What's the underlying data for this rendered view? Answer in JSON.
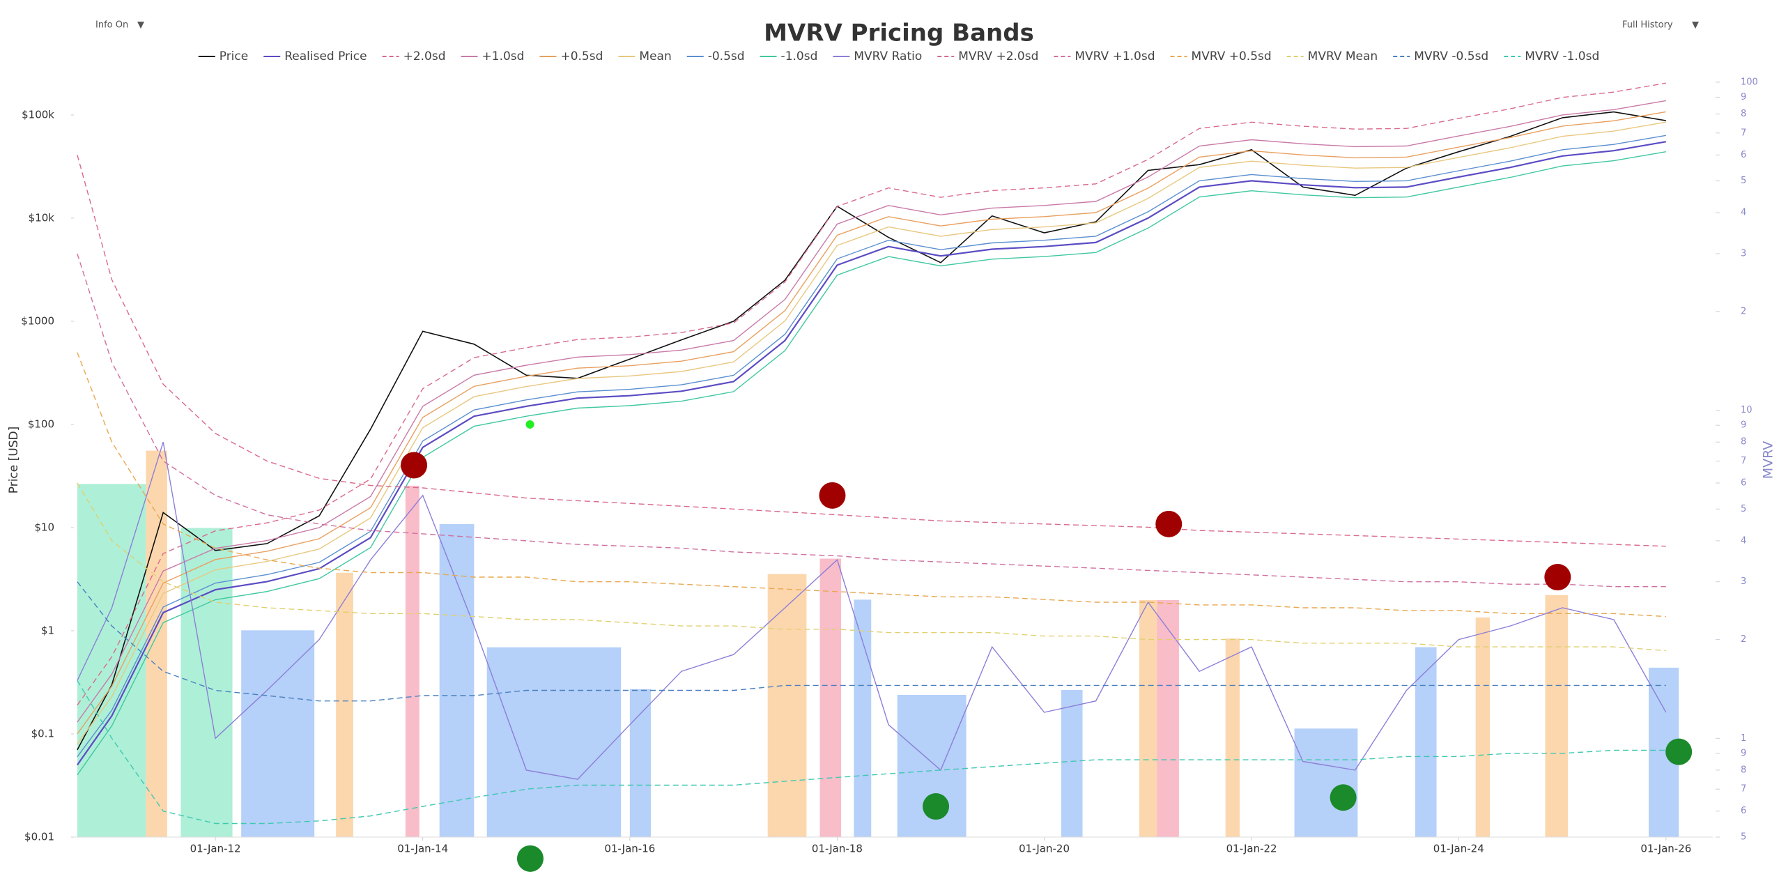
{
  "controls": [
    {
      "label": "Info On",
      "arrow": "▼"
    },
    {
      "label": "Full History",
      "arrow": "▼"
    }
  ],
  "chart_data": {
    "type": "line",
    "title": "MVRV Pricing Bands",
    "y_label": "Price [USD]",
    "y2_label": "MVRV",
    "log_y": true,
    "log_y2": true,
    "grid": false,
    "legend": "top",
    "x": [
      "2010-09-01",
      "2011-01-01",
      "2011-07-01",
      "2012-01-01",
      "2012-07-01",
      "2013-01-01",
      "2013-07-01",
      "2014-01-01",
      "2014-07-01",
      "2015-01-01",
      "2015-07-01",
      "2016-01-01",
      "2016-07-01",
      "2017-01-01",
      "2017-07-01",
      "2018-01-01",
      "2018-07-01",
      "2019-01-01",
      "2019-07-01",
      "2020-01-01",
      "2020-07-01",
      "2021-01-01",
      "2021-07-01",
      "2022-01-01",
      "2022-07-01",
      "2023-01-01",
      "2023-07-01",
      "2024-01-01",
      "2024-07-01",
      "2025-01-01",
      "2025-07-01",
      "2026-01-01"
    ],
    "xlim": [
      "2010-08-20",
      "2026-06-15"
    ],
    "xticks": [
      {
        "value": "2012-01-01",
        "label": "01-Jan-12"
      },
      {
        "value": "2014-01-01",
        "label": "01-Jan-14"
      },
      {
        "value": "2016-01-01",
        "label": "01-Jan-16"
      },
      {
        "value": "2018-01-01",
        "label": "01-Jan-18"
      },
      {
        "value": "2020-01-01",
        "label": "01-Jan-20"
      },
      {
        "value": "2022-01-01",
        "label": "01-Jan-22"
      },
      {
        "value": "2024-01-01",
        "label": "01-Jan-24"
      },
      {
        "value": "2026-01-01",
        "label": "01-Jan-26"
      }
    ],
    "ylim": [
      0.01,
      250000
    ],
    "yticks": [
      {
        "value": 0.01,
        "label": "$0.01"
      },
      {
        "value": 0.1,
        "label": "$0.1"
      },
      {
        "value": 1,
        "label": "$1"
      },
      {
        "value": 10,
        "label": "$10"
      },
      {
        "value": 100,
        "label": "$100"
      },
      {
        "value": 1000,
        "label": "$1000"
      },
      {
        "value": 10000,
        "label": "$10k"
      },
      {
        "value": 100000,
        "label": "$100k"
      }
    ],
    "y2lim": [
      0.5,
      106
    ],
    "y2ticks": [
      100,
      {
        "value": 90,
        "label": "9"
      },
      {
        "value": 80,
        "label": "8"
      },
      {
        "value": 70,
        "label": "7"
      },
      {
        "value": 60,
        "label": "6"
      },
      {
        "value": 50,
        "label": "5"
      },
      {
        "value": 40,
        "label": "4"
      },
      {
        "value": 30,
        "label": "3"
      },
      {
        "value": 20,
        "label": "2"
      },
      10,
      {
        "value": 9,
        "label": "9"
      },
      {
        "value": 8,
        "label": "8"
      },
      {
        "value": 7,
        "label": "7"
      },
      {
        "value": 6,
        "label": "6"
      },
      {
        "value": 5,
        "label": "5"
      },
      {
        "value": 4,
        "label": "4"
      },
      {
        "value": 3,
        "label": "3"
      },
      {
        "value": 2,
        "label": "2"
      },
      1,
      {
        "value": 0.9,
        "label": "9"
      },
      {
        "value": 0.8,
        "label": "8"
      },
      {
        "value": 0.7,
        "label": "7"
      },
      {
        "value": 0.6,
        "label": "6"
      },
      {
        "value": 0.5,
        "label": "5"
      }
    ],
    "series": [
      {
        "name": "Price",
        "color": "#111111",
        "width": 1.6,
        "values": [
          0.07,
          0.3,
          14,
          6,
          7,
          13,
          90,
          800,
          600,
          300,
          280,
          430,
          660,
          1000,
          2500,
          13000,
          6500,
          3700,
          10500,
          7200,
          9200,
          29000,
          33000,
          46000,
          20000,
          16600,
          30500,
          44000,
          62000,
          94000,
          107000,
          88000
        ]
      },
      {
        "name": "Realised Price",
        "color": "#5b4cc4",
        "width": 2.2,
        "values": [
          0.05,
          0.15,
          1.5,
          2.5,
          3,
          4,
          8,
          60,
          120,
          150,
          180,
          190,
          210,
          260,
          650,
          3500,
          5300,
          4300,
          5000,
          5300,
          5800,
          10000,
          20000,
          23000,
          21000,
          19700,
          20000,
          25000,
          31000,
          40000,
          45000,
          55000
        ]
      },
      {
        "name": "+2.0sd",
        "color": "#d96a8a",
        "dashed": true,
        "values": [
          0.19,
          0.56,
          5.6,
          9.3,
          11.1,
          14.8,
          29.6,
          222,
          444,
          555,
          666,
          703,
          777,
          962,
          2405,
          12950,
          19610,
          15910,
          18500,
          19610,
          21460,
          37000,
          74000,
          85100,
          77700,
          72890,
          74000,
          92500,
          114700,
          148000,
          166500,
          203500
        ]
      },
      {
        "name": "+1.0sd",
        "color": "#c97aa8",
        "values": [
          0.13,
          0.38,
          3.8,
          6.3,
          7.5,
          10,
          20,
          150,
          300,
          375,
          450,
          475,
          525,
          650,
          1625,
          8750,
          13250,
          10750,
          12500,
          13250,
          14500,
          25000,
          50000,
          57500,
          52500,
          49250,
          50000,
          62500,
          77500,
          100000,
          112500,
          137500
        ]
      },
      {
        "name": "+0.5sd",
        "color": "#e8a060",
        "values": [
          0.1,
          0.29,
          2.9,
          4.9,
          5.9,
          7.8,
          15.6,
          117,
          234,
          293,
          351,
          371,
          410,
          507,
          1268,
          6825,
          10335,
          8385,
          9750,
          10335,
          11310,
          19500,
          39000,
          44850,
          40950,
          38415,
          39000,
          48750,
          60450,
          78000,
          87750,
          107250
        ]
      },
      {
        "name": "Mean",
        "color": "#e8c880",
        "values": [
          0.08,
          0.23,
          2.3,
          3.9,
          4.7,
          6.2,
          12.4,
          93,
          186,
          233,
          279,
          295,
          326,
          403,
          1008,
          5425,
          8215,
          6665,
          7750,
          8215,
          8990,
          15500,
          31000,
          35650,
          32550,
          30535,
          31000,
          38750,
          48050,
          62000,
          69750,
          85250
        ]
      },
      {
        "name": "-0.5sd",
        "color": "#5a8fd0",
        "values": [
          0.06,
          0.17,
          1.7,
          2.9,
          3.5,
          4.6,
          9.2,
          69,
          138,
          173,
          207,
          219,
          242,
          299,
          748,
          4025,
          6095,
          4945,
          5750,
          6095,
          6670,
          11500,
          23000,
          26450,
          24150,
          22655,
          23000,
          28750,
          35650,
          46000,
          51750,
          63250
        ]
      },
      {
        "name": "-1.0sd",
        "color": "#40c8a0",
        "values": [
          0.04,
          0.12,
          1.2,
          2,
          2.4,
          3.2,
          6.4,
          48,
          96,
          120,
          144,
          152,
          168,
          208,
          520,
          2800,
          4240,
          3440,
          4000,
          4240,
          4640,
          8000,
          16000,
          18400,
          16800,
          15760,
          16000,
          20000,
          24800,
          32000,
          36000,
          44000
        ]
      },
      {
        "name": "MVRV Ratio",
        "color": "#8c7fd8",
        "axis": "y2",
        "values": [
          1.5,
          2.5,
          8,
          1.0,
          1.4,
          2.0,
          3.5,
          5.5,
          2.2,
          0.8,
          0.75,
          1.1,
          1.6,
          1.8,
          2.5,
          3.5,
          1.1,
          0.8,
          1.9,
          1.2,
          1.3,
          2.6,
          1.6,
          1.9,
          0.85,
          0.8,
          1.4,
          2.0,
          2.2,
          2.5,
          2.3,
          1.2
        ]
      },
      {
        "name": "MVRV +2.0sd",
        "color": "#d96a8a",
        "axis": "y2",
        "dashed": true,
        "values": [
          60,
          25,
          12,
          8.5,
          7,
          6.2,
          5.9,
          5.8,
          5.6,
          5.4,
          5.3,
          5.2,
          5.1,
          5,
          4.9,
          4.8,
          4.7,
          4.6,
          4.55,
          4.5,
          4.45,
          4.4,
          4.3,
          4.25,
          4.2,
          4.15,
          4.1,
          4.05,
          4,
          3.95,
          3.9,
          3.85
        ]
      },
      {
        "name": "MVRV +1.0sd",
        "color": "#d070a0",
        "axis": "y2",
        "dashed": true,
        "values": [
          30,
          14,
          7,
          5.5,
          4.8,
          4.5,
          4.3,
          4.2,
          4.1,
          4,
          3.9,
          3.85,
          3.8,
          3.7,
          3.65,
          3.6,
          3.5,
          3.45,
          3.4,
          3.35,
          3.3,
          3.25,
          3.2,
          3.15,
          3.1,
          3.05,
          3.0,
          3.0,
          2.95,
          2.95,
          2.9,
          2.9
        ]
      },
      {
        "name": "MVRV +0.5sd",
        "color": "#e8a850",
        "axis": "y2",
        "dashed": true,
        "values": [
          15,
          8,
          4.5,
          3.8,
          3.5,
          3.3,
          3.2,
          3.2,
          3.1,
          3.1,
          3.0,
          3.0,
          2.95,
          2.9,
          2.85,
          2.8,
          2.75,
          2.7,
          2.7,
          2.65,
          2.6,
          2.6,
          2.55,
          2.55,
          2.5,
          2.5,
          2.45,
          2.45,
          2.4,
          2.4,
          2.4,
          2.35
        ]
      },
      {
        "name": "MVRV Mean",
        "color": "#e0d070",
        "axis": "y2",
        "dashed": true,
        "values": [
          6,
          4,
          3,
          2.6,
          2.5,
          2.45,
          2.4,
          2.4,
          2.35,
          2.3,
          2.3,
          2.25,
          2.2,
          2.2,
          2.15,
          2.15,
          2.1,
          2.1,
          2.1,
          2.05,
          2.05,
          2.0,
          2.0,
          2.0,
          1.95,
          1.95,
          1.95,
          1.9,
          1.9,
          1.9,
          1.9,
          1.85
        ]
      },
      {
        "name": "MVRV -0.5sd",
        "color": "#4a80c0",
        "axis": "y2",
        "dashed": true,
        "values": [
          3,
          2.2,
          1.6,
          1.4,
          1.35,
          1.3,
          1.3,
          1.35,
          1.35,
          1.4,
          1.4,
          1.4,
          1.4,
          1.4,
          1.45,
          1.45,
          1.45,
          1.45,
          1.45,
          1.45,
          1.45,
          1.45,
          1.45,
          1.45,
          1.45,
          1.45,
          1.45,
          1.45,
          1.45,
          1.45,
          1.45,
          1.45
        ]
      },
      {
        "name": "MVRV -1.0sd",
        "color": "#40c8b0",
        "axis": "y2",
        "dashed": true,
        "values": [
          1.5,
          1,
          0.6,
          0.55,
          0.55,
          0.56,
          0.58,
          0.62,
          0.66,
          0.7,
          0.72,
          0.72,
          0.72,
          0.72,
          0.74,
          0.76,
          0.78,
          0.8,
          0.82,
          0.84,
          0.86,
          0.86,
          0.86,
          0.86,
          0.86,
          0.86,
          0.88,
          0.88,
          0.9,
          0.9,
          0.92,
          0.92
        ]
      }
    ],
    "zones": [
      {
        "start": "2010-09-01",
        "end": "2011-05-01",
        "color": "#a0ecd0"
      },
      {
        "start": "2011-05-01",
        "end": "2011-07-15",
        "color": "#fcd0a0"
      },
      {
        "start": "2011-09-01",
        "end": "2012-03-01",
        "color": "#a0ecd0"
      },
      {
        "start": "2012-04-01",
        "end": "2012-12-15",
        "color": "#a8c8f8"
      },
      {
        "start": "2013-03-01",
        "end": "2013-05-01",
        "color": "#fcd0a0"
      },
      {
        "start": "2013-11-01",
        "end": "2013-12-20",
        "color": "#f8b0c0"
      },
      {
        "start": "2014-03-01",
        "end": "2014-07-01",
        "color": "#a8c8f8"
      },
      {
        "start": "2014-08-15",
        "end": "2015-12-01",
        "color": "#a8c8f8"
      },
      {
        "start": "2016-01-01",
        "end": "2016-03-15",
        "color": "#a8c8f8"
      },
      {
        "start": "2017-05-01",
        "end": "2017-09-15",
        "color": "#fcd0a0"
      },
      {
        "start": "2017-11-01",
        "end": "2018-01-15",
        "color": "#f8b0c0"
      },
      {
        "start": "2018-03-01",
        "end": "2018-05-01",
        "color": "#a8c8f8"
      },
      {
        "start": "2018-08-01",
        "end": "2019-04-01",
        "color": "#a8c8f8"
      },
      {
        "start": "2020-03-01",
        "end": "2020-05-15",
        "color": "#a8c8f8"
      },
      {
        "start": "2020-12-01",
        "end": "2021-02-01",
        "color": "#fcd0a0"
      },
      {
        "start": "2021-02-01",
        "end": "2021-04-20",
        "color": "#f8b0c0"
      },
      {
        "start": "2021-10-01",
        "end": "2021-11-20",
        "color": "#fcd0a0"
      },
      {
        "start": "2022-06-01",
        "end": "2023-01-10",
        "color": "#a8c8f8"
      },
      {
        "start": "2023-08-01",
        "end": "2023-10-15",
        "color": "#a8c8f8"
      },
      {
        "start": "2024-03-01",
        "end": "2024-04-20",
        "color": "#fcd0a0"
      },
      {
        "start": "2024-11-01",
        "end": "2025-01-20",
        "color": "#fcd0a0"
      },
      {
        "start": "2025-11-01",
        "end": "2026-02-15",
        "color": "#a8c8f8"
      }
    ],
    "signals": [
      {
        "x": "2013-12-01",
        "value": 6.8,
        "color": "#a00000"
      },
      {
        "x": "2017-12-15",
        "value": 5.5,
        "color": "#a00000"
      },
      {
        "x": "2021-03-15",
        "value": 4.5,
        "color": "#a00000"
      },
      {
        "x": "2024-12-15",
        "value": 3.1,
        "color": "#a00000"
      },
      {
        "x": "2015-01-15",
        "value": 0.43,
        "color": "#1a8a2a"
      },
      {
        "x": "2018-12-15",
        "value": 0.62,
        "color": "#1a8a2a"
      },
      {
        "x": "2022-11-20",
        "value": 0.66,
        "color": "#1a8a2a"
      },
      {
        "x": "2026-02-15",
        "value": 0.91,
        "color": "#1a8a2a"
      }
    ],
    "price_marker": {
      "x": "2015-01-14",
      "value": 100,
      "color": "#22ee22"
    }
  }
}
